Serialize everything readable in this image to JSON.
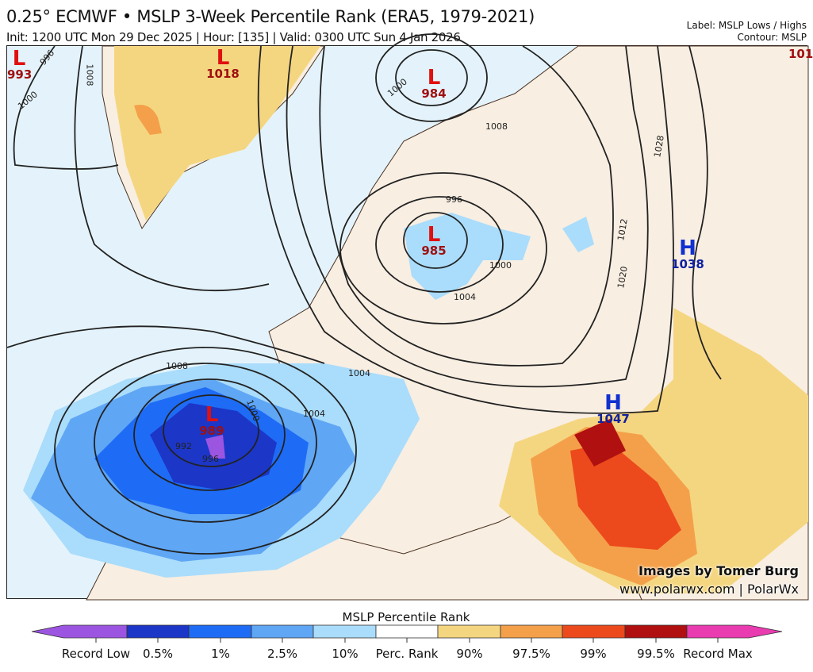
{
  "header": {
    "title": "0.25° ECMWF • MSLP 3-Week Percentile Rank (ERA5, 1979-2021)",
    "subtitle": "Init: 1200 UTC Mon 29 Dec 2025 | Hour: [135] | Valid: 0300 UTC Sun 4 Jan 2026",
    "label_info": "Label: MSLP Lows / Highs",
    "contour_info": "Contour: MSLP"
  },
  "map": {
    "pressure_centers": [
      {
        "type": "L",
        "value": "993"
      },
      {
        "type": "L",
        "value": "1018"
      },
      {
        "type": "L",
        "value": "984"
      },
      {
        "type": "L",
        "value": "985"
      },
      {
        "type": "L",
        "value": "989"
      },
      {
        "type": "H",
        "value": "1038"
      },
      {
        "type": "H",
        "value": "1047"
      },
      {
        "type": "L",
        "value": "101"
      }
    ],
    "contour_labels": [
      "996",
      "1000",
      "1008",
      "1000",
      "1008",
      "996",
      "1000",
      "1004",
      "1012",
      "1020",
      "1028",
      "1008",
      "1004",
      "1004",
      "1000",
      "992",
      "996"
    ],
    "credit_line1": "Images by Tomer Burg",
    "credit_line2": "www.polarwx.com | PolarWx"
  },
  "colorbar": {
    "title": "MSLP Percentile Rank",
    "colors": [
      "#9b55e0",
      "#1c36c8",
      "#1e6cf5",
      "#5fa6f5",
      "#aadcfb",
      "#ffffff",
      "#f5d680",
      "#f4a04a",
      "#ec4a1c",
      "#b01010",
      "#e83cb0"
    ],
    "labels": [
      "Record Low",
      "0.5%",
      "1%",
      "2.5%",
      "10%",
      "Perc. Rank",
      "90%",
      "97.5%",
      "99%",
      "99.5%",
      "Record Max"
    ]
  }
}
